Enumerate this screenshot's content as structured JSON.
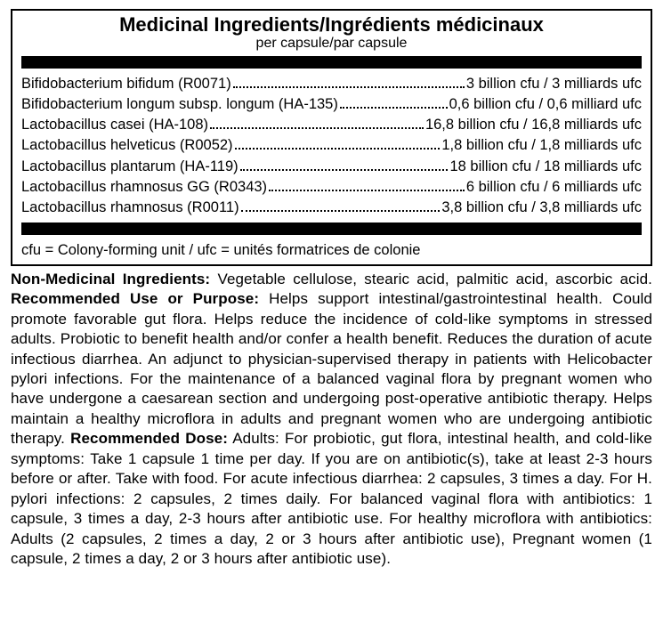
{
  "header": {
    "title": "Medicinal Ingredients/Ingrédients médicinaux",
    "subtitle": "per capsule/par capsule"
  },
  "ingredients": [
    {
      "name": "Bifidobacterium bifidum (R0071) ",
      "value": "3 billion cfu / 3 milliards ufc"
    },
    {
      "name": "Bifidobacterium longum subsp. longum (HA-135)",
      "value": " 0,6 billion cfu / 0,6 milliard ufc"
    },
    {
      "name": "Lactobacillus casei (HA-108) ",
      "value": "16,8 billion cfu / 16,8 milliards ufc"
    },
    {
      "name": "Lactobacillus helveticus (R0052)",
      "value": "1,8 billion cfu / 1,8 milliards ufc"
    },
    {
      "name": "Lactobacillus plantarum (HA-119) ",
      "value": " 18 billion cfu / 18 milliards ufc"
    },
    {
      "name": "Lactobacillus rhamnosus GG (R0343)",
      "value": " 6 billion cfu / 6 milliards ufc"
    },
    {
      "name": "Lactobacillus rhamnosus (R0011) ",
      "value": "3,8 billion cfu / 3,8 milliards ufc"
    }
  ],
  "legend": "cfu = Colony-forming unit / ufc = unités formatrices de colonie",
  "body": {
    "h1": "Non-Medicinal Ingredients:",
    "t1": " Vegetable cellulose, stearic acid, palmitic acid, ascorbic acid. ",
    "h2": "Recommended Use or Purpose:",
    "t2": " Helps support intestinal/gastrointestinal health. Could promote favorable gut flora. Helps reduce the incidence of cold-like symptoms in stressed adults. Probiotic to benefit health and/or confer a health benefit. Reduces the duration of acute infectious diarrhea. An adjunct to physician-supervised therapy in patients with Helicobacter pylori infections. For the maintenance of a balanced vaginal flora by pregnant women who have undergone a caesarean section and undergoing post-operative antibiotic therapy. Helps maintain a healthy microflora in adults and pregnant women who are undergoing antibiotic therapy. ",
    "h3": "Recommended Dose:",
    "t3": " Adults: For probiotic, gut flora, intestinal health, and cold-like symptoms: Take 1 capsule 1 time per day. If you are on antibiotic(s), take at least 2-3 hours before or after. Take with food. For acute infectious diarrhea: 2 capsules, 3 times a day. For H. pylori infections: 2 capsules, 2 times daily. For balanced vaginal flora with antibiotics: 1 capsule, 3 times a day, 2-3 hours after antibiotic use. For healthy microflora with antibiotics: Adults (2 capsules, 2 times a day, 2 or 3 hours after antibiotic use), Pregnant women (1 capsule, 2 times a day, 2 or 3 hours after antibiotic use)."
  },
  "style": {
    "panel_border": "#000000",
    "bar_color": "#000000",
    "bg": "#ffffff",
    "text": "#000000",
    "title_fontsize": 22,
    "row_fontsize": 16.5,
    "body_fontsize": 17
  }
}
